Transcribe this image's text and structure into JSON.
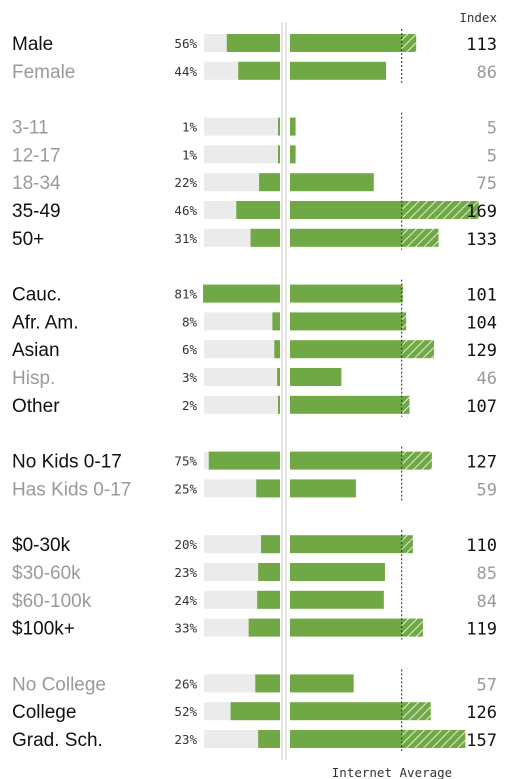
{
  "chart_data": {
    "type": "bar",
    "index_header": "Index",
    "footer_label": "Internet Average",
    "colors": {
      "bar": "#6fa844",
      "track": "#ebebeb",
      "hatch": "#ffffff",
      "active_text": "#111111",
      "muted_text": "#9a9a9a"
    },
    "groups": [
      {
        "rows": [
          {
            "label": "Male",
            "percent": 56,
            "percent_label": "56%",
            "index": 113,
            "active": true
          },
          {
            "label": "Female",
            "percent": 44,
            "percent_label": "44%",
            "index": 86,
            "active": false
          }
        ]
      },
      {
        "rows": [
          {
            "label": "3-11",
            "percent": 1,
            "percent_label": "1%",
            "index": 5,
            "active": false
          },
          {
            "label": "12-17",
            "percent": 1,
            "percent_label": "1%",
            "index": 5,
            "active": false
          },
          {
            "label": "18-34",
            "percent": 22,
            "percent_label": "22%",
            "index": 75,
            "active": false
          },
          {
            "label": "35-49",
            "percent": 46,
            "percent_label": "46%",
            "index": 169,
            "active": true
          },
          {
            "label": "50+",
            "percent": 31,
            "percent_label": "31%",
            "index": 133,
            "active": true
          }
        ]
      },
      {
        "rows": [
          {
            "label": "Cauc.",
            "percent": 81,
            "percent_label": "81%",
            "index": 101,
            "active": true
          },
          {
            "label": "Afr. Am.",
            "percent": 8,
            "percent_label": "8%",
            "index": 104,
            "active": true
          },
          {
            "label": "Asian",
            "percent": 6,
            "percent_label": "6%",
            "index": 129,
            "active": true
          },
          {
            "label": "Hisp.",
            "percent": 3,
            "percent_label": "3%",
            "index": 46,
            "active": false
          },
          {
            "label": "Other",
            "percent": 2,
            "percent_label": "2%",
            "index": 107,
            "active": true
          }
        ]
      },
      {
        "rows": [
          {
            "label": "No Kids 0-17",
            "percent": 75,
            "percent_label": "75%",
            "index": 127,
            "active": true
          },
          {
            "label": "Has Kids 0-17",
            "percent": 25,
            "percent_label": "25%",
            "index": 59,
            "active": false
          }
        ]
      },
      {
        "rows": [
          {
            "label": "$0-30k",
            "percent": 20,
            "percent_label": "20%",
            "index": 110,
            "active": true
          },
          {
            "label": "$30-60k",
            "percent": 23,
            "percent_label": "23%",
            "index": 85,
            "active": false
          },
          {
            "label": "$60-100k",
            "percent": 24,
            "percent_label": "24%",
            "index": 84,
            "active": false
          },
          {
            "label": "$100k+",
            "percent": 33,
            "percent_label": "33%",
            "index": 119,
            "active": true
          }
        ]
      },
      {
        "rows": [
          {
            "label": "No College",
            "percent": 26,
            "percent_label": "26%",
            "index": 57,
            "active": false
          },
          {
            "label": "College",
            "percent": 52,
            "percent_label": "52%",
            "index": 126,
            "active": true
          },
          {
            "label": "Grad. Sch.",
            "percent": 23,
            "percent_label": "23%",
            "index": 157,
            "active": true
          }
        ]
      }
    ]
  }
}
